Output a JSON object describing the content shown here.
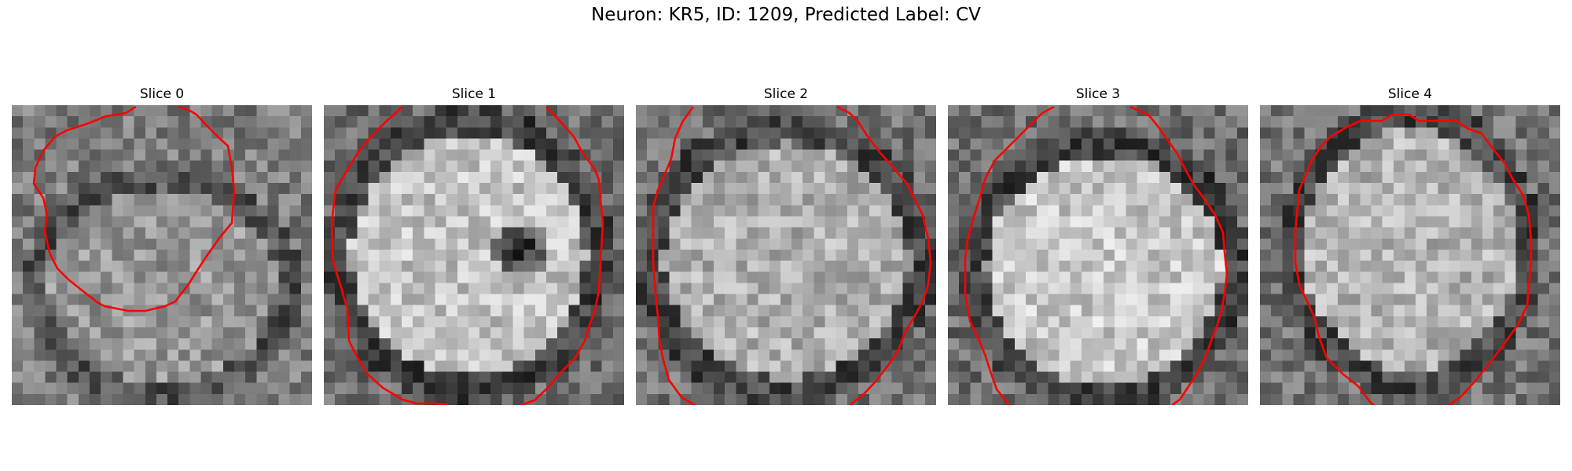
{
  "figure": {
    "title": "Neuron: KR5, ID: 1209, Predicted Label: CV"
  },
  "contour_color": "#ff0000",
  "panels": [
    {
      "title": "Slice 0",
      "content": "grayscale cell slice with red outline"
    },
    {
      "title": "Slice 1",
      "content": "grayscale cell slice with red outline"
    },
    {
      "title": "Slice 2",
      "content": "grayscale cell slice with red outline"
    },
    {
      "title": "Slice 3",
      "content": "grayscale cell slice with red outline"
    },
    {
      "title": "Slice 4",
      "content": "grayscale cell slice with red outline"
    }
  ]
}
